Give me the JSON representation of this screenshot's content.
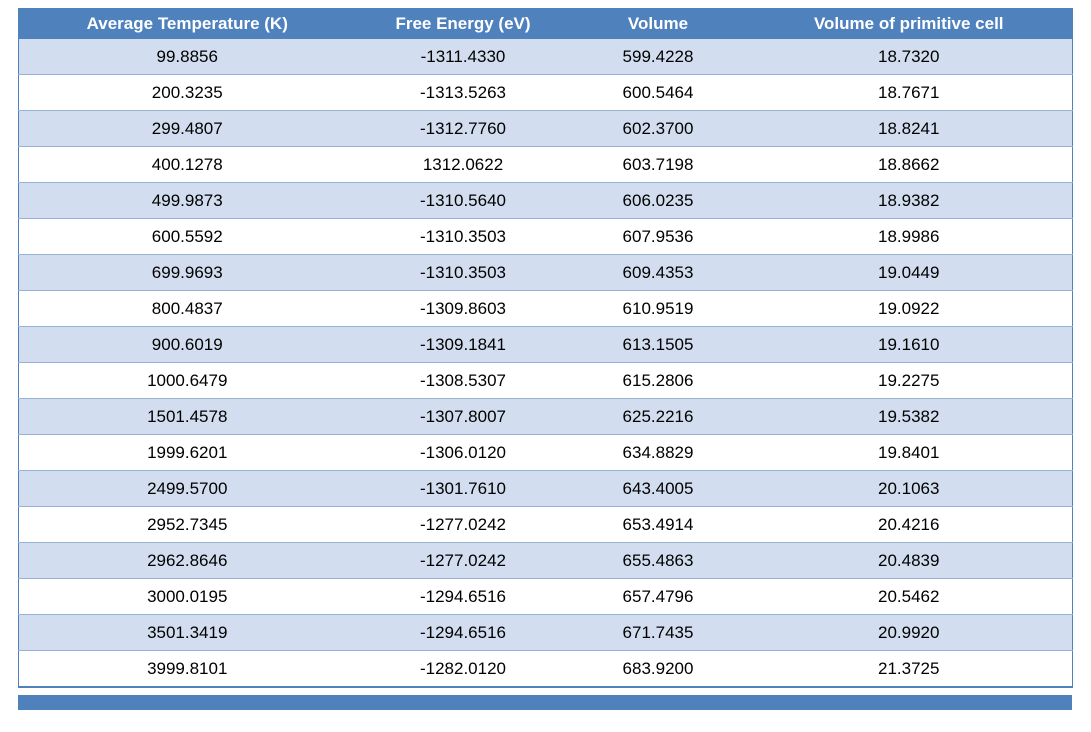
{
  "table": {
    "headers": [
      "Average Temperature (K)",
      "Free Energy (eV)",
      "Volume",
      "Volume of primitive cell"
    ],
    "rows": [
      [
        "99.8856",
        "-1311.4330",
        "599.4228",
        "18.7320"
      ],
      [
        "200.3235",
        "-1313.5263",
        "600.5464",
        "18.7671"
      ],
      [
        "299.4807",
        "-1312.7760",
        "602.3700",
        "18.8241"
      ],
      [
        "400.1278",
        "1312.0622",
        "603.7198",
        "18.8662"
      ],
      [
        "499.9873",
        "-1310.5640",
        "606.0235",
        "18.9382"
      ],
      [
        "600.5592",
        "-1310.3503",
        "607.9536",
        "18.9986"
      ],
      [
        "699.9693",
        "-1310.3503",
        "609.4353",
        "19.0449"
      ],
      [
        "800.4837",
        "-1309.8603",
        "610.9519",
        "19.0922"
      ],
      [
        "900.6019",
        "-1309.1841",
        "613.1505",
        "19.1610"
      ],
      [
        "1000.6479",
        "-1308.5307",
        "615.2806",
        "19.2275"
      ],
      [
        "1501.4578",
        "-1307.8007",
        "625.2216",
        "19.5382"
      ],
      [
        "1999.6201",
        "-1306.0120",
        "634.8829",
        "19.8401"
      ],
      [
        "2499.5700",
        "-1301.7610",
        "643.4005",
        "20.1063"
      ],
      [
        "2952.7345",
        "-1277.0242",
        "653.4914",
        "20.4216"
      ],
      [
        "2962.8646",
        "-1277.0242",
        "655.4863",
        "20.4839"
      ],
      [
        "3000.0195",
        "-1294.6516",
        "657.4796",
        "20.5462"
      ],
      [
        "3501.3419",
        "-1294.6516",
        "671.7435",
        "20.9920"
      ],
      [
        "3999.8101",
        "-1282.0120",
        "683.9200",
        "21.3725"
      ]
    ]
  },
  "next_table_header_bar": {
    "visible": true,
    "label": ""
  },
  "colors": {
    "header_bg": "#4F81BD",
    "header_text": "#FFFFFF",
    "band_bg": "#D2DEEF",
    "row_bg": "#FFFFFF",
    "inner_border": "#95B3D7",
    "outer_border": "#4F81BD",
    "body_text": "#000000"
  }
}
